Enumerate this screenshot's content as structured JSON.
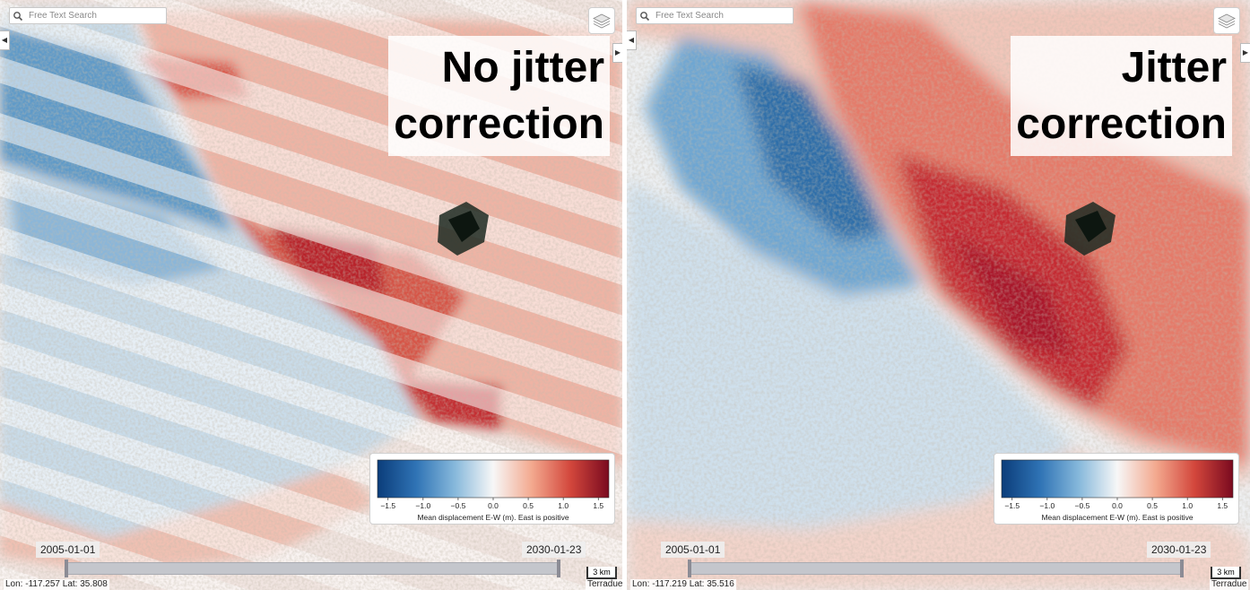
{
  "search": {
    "placeholder": "Free Text Search",
    "icon": "search-icon"
  },
  "panels": [
    {
      "id": "left",
      "overlay_label_lines": [
        "No jitter",
        "correction"
      ],
      "timeline": {
        "start": "2005-01-01",
        "end": "2030-01-23"
      },
      "scale": "3 km",
      "coords": "Lon: -117.257 Lat: 35.808",
      "attribution": "Terradue"
    },
    {
      "id": "right",
      "overlay_label_lines": [
        "Jitter",
        "correction"
      ],
      "timeline": {
        "start": "2005-01-01",
        "end": "2030-01-23"
      },
      "scale": "3 km",
      "coords": "Lon: -117.219 Lat: 35.516",
      "attribution": "Terradue"
    }
  ],
  "legend": {
    "ticks": [
      "−1.5",
      "−1.0",
      "−0.5",
      "0.0",
      "0.5",
      "1.0",
      "1.5"
    ],
    "tick_values": [
      -1.5,
      -1.0,
      -0.5,
      0.0,
      0.5,
      1.0,
      1.5
    ],
    "range": [
      -1.65,
      1.65
    ],
    "caption": "Mean displacement E-W (m). East is positive",
    "colormap_stops": [
      "#0b3d7a",
      "#2f73b5",
      "#86b8db",
      "#f7f7f7",
      "#f3a98f",
      "#d3473c",
      "#7a0a1f"
    ]
  },
  "colors": {
    "blue_zone": "#3b7dbd",
    "red_zone": "#d9463c",
    "ground": "#b0a184"
  }
}
